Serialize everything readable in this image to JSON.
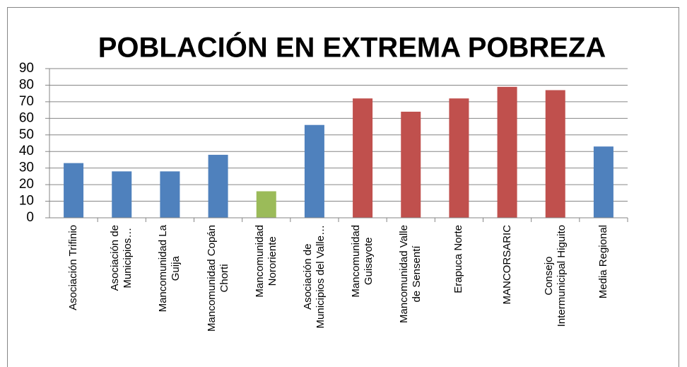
{
  "chart_data": {
    "type": "bar",
    "title": "POBLACIÓN EN EXTREMA POBREZA",
    "categories": [
      "Asociación Trifinio",
      "Asociación de\nMunicipios…",
      "Mancomunidad La\nGuija",
      "Mancomunidad Copán\nChorti",
      "Mancomunidad\nNororiente",
      "Asociación de\nMunicipios del Valle…",
      "Mancomunidad\nGuisayote",
      "Mancomunidad Valle\nde Sensentí",
      "Erapuca Norte",
      "MANCORSARIC",
      "Consejo\nIntermunicipal Higuito",
      "Media Regional"
    ],
    "values": [
      33,
      28,
      28,
      38,
      16,
      56,
      72,
      64,
      72,
      79,
      77,
      43
    ],
    "colors": [
      "#4f81bd",
      "#4f81bd",
      "#4f81bd",
      "#4f81bd",
      "#9bbb59",
      "#4f81bd",
      "#c0504d",
      "#c0504d",
      "#c0504d",
      "#c0504d",
      "#c0504d",
      "#4f81bd"
    ],
    "ylim": [
      0,
      90
    ],
    "yticks": [
      0,
      10,
      20,
      30,
      40,
      50,
      60,
      70,
      80,
      90
    ],
    "grid": true
  }
}
